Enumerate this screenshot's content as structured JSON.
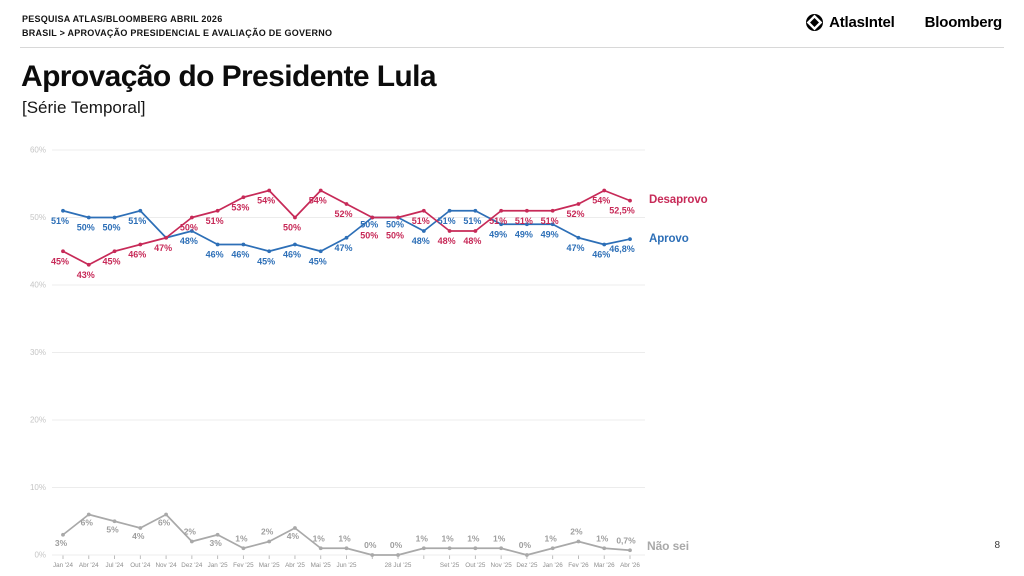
{
  "header": {
    "line1": "PESQUISA ATLAS/BLOOMBERG ABRIL 2026",
    "line2": "BRASIL > APROVAÇÃO PRESIDENCIAL E AVALIAÇÃO DE GOVERNO",
    "brand_atlas": "AtlasIntel",
    "brand_bloomberg": "Bloomberg"
  },
  "title": "Aprovação do Presidente Lula",
  "subtitle": "[Série Temporal]",
  "page_number": "8",
  "colors": {
    "desaprovo": "#c72a58",
    "aprovo": "#2d6fb7",
    "nao_sei": "#a9a9a9",
    "grid": "#ececec",
    "y_tick_label": "#c5c5c5",
    "x_tick_label": "#8e8e8e",
    "x_tick_mark": "#b5b5b5"
  },
  "chart_data": {
    "type": "line",
    "title": "Aprovação do Presidente Lula",
    "subtitle": "[Série Temporal]",
    "xlabel": "",
    "ylabel": "",
    "ylim": [
      0,
      60
    ],
    "yticks": [
      "0%",
      "10%",
      "20%",
      "30%",
      "40%",
      "50%",
      "60%"
    ],
    "grid": true,
    "legend_position": "right-of-line-ends",
    "categories": [
      "Jan '24",
      "Abr '24",
      "Jul '24",
      "Out '24",
      "Nov '24",
      "Dez '24",
      "Jan '25",
      "Fev '25",
      "Mar '25",
      "Abr '25",
      "Mai '25",
      "Jun '25",
      "",
      "28 Jul '25",
      "",
      "Set '25",
      "Out '25",
      "Nov '25",
      "Dez '25",
      "Jan '26",
      "Fev '26",
      "Mar '26",
      "Abr '26"
    ],
    "series": [
      {
        "name": "Desaprovo",
        "color": "#c72a58",
        "values": [
          45,
          43,
          45,
          46,
          47,
          50,
          51,
          53,
          54,
          50,
          54,
          52,
          50,
          50,
          51,
          48,
          48,
          51,
          51,
          51,
          52,
          54,
          52.5
        ],
        "labels": [
          "45%",
          "43%",
          "45%",
          "46%",
          "47%",
          "50%",
          "51%",
          "53%",
          "54%",
          "50%",
          "54%",
          "52%",
          "50%",
          "50%",
          "51%",
          "48%",
          "48%",
          "51%",
          "51%",
          "51%",
          "52%",
          "54%",
          "52,5%"
        ]
      },
      {
        "name": "Aprovo",
        "color": "#2d6fb7",
        "values": [
          51,
          50,
          50,
          51,
          47,
          48,
          46,
          46,
          45,
          46,
          45,
          47,
          50,
          50,
          48,
          51,
          51,
          49,
          49,
          49,
          47,
          46,
          46.8
        ],
        "labels": [
          "51%",
          "50%",
          "50%",
          "51%",
          "",
          "48%",
          "46%",
          "46%",
          "45%",
          "46%",
          "45%",
          "47%",
          "50%",
          "50%",
          "48%",
          "51%",
          "51%",
          "49%",
          "49%",
          "49%",
          "47%",
          "46%",
          "46,8%"
        ]
      },
      {
        "name": "Não sei",
        "color": "#a9a9a9",
        "values": [
          3,
          6,
          5,
          4,
          6,
          2,
          3,
          1,
          2,
          4,
          1,
          1,
          0,
          0,
          1,
          1,
          1,
          1,
          0,
          1,
          2,
          1,
          0.7
        ],
        "labels": [
          "3%",
          "6%",
          "5%",
          "4%",
          "6%",
          "2%",
          "3%",
          "1%",
          "2%",
          "4%",
          "1%",
          "1%",
          "0%",
          "0%",
          "1%",
          "1%",
          "1%",
          "1%",
          "0%",
          "1%",
          "2%",
          "1%",
          "0,7%"
        ]
      }
    ]
  }
}
